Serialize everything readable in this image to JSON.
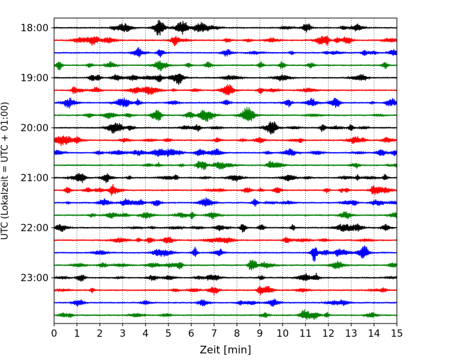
{
  "chart_data": {
    "type": "line",
    "title": "",
    "xlabel": "Zeit  [min]",
    "ylabel": "UTC (Lokalzeit = UTC + 01:00)",
    "xlim": [
      0,
      15
    ],
    "x_ticks": [
      "0",
      "1",
      "2",
      "3",
      "4",
      "5",
      "6",
      "7",
      "8",
      "9",
      "10",
      "11",
      "12",
      "13",
      "14",
      "15"
    ],
    "y_ticks": [
      "18:00",
      "19:00",
      "20:00",
      "21:00",
      "22:00",
      "23:00"
    ],
    "grid": "vertical dotted at each minute",
    "legend": "none",
    "trace_minutes": 15,
    "colors_cycle": [
      "#000000",
      "#ff0000",
      "#0000ff",
      "#007f00"
    ],
    "series": [
      {
        "start": "18:00",
        "amplitude": 0.5
      },
      {
        "start": "18:15",
        "amplitude": 0.5
      },
      {
        "start": "18:30",
        "amplitude": 0.5
      },
      {
        "start": "18:45",
        "amplitude": 0.5
      },
      {
        "start": "19:00",
        "amplitude": 0.5
      },
      {
        "start": "19:15",
        "amplitude": 0.5
      },
      {
        "start": "19:30",
        "amplitude": 0.5
      },
      {
        "start": "19:45",
        "amplitude": 0.5
      },
      {
        "start": "20:00",
        "amplitude": 0.5
      },
      {
        "start": "20:15",
        "amplitude": 0.5
      },
      {
        "start": "20:30",
        "amplitude": 0.5
      },
      {
        "start": "20:45",
        "amplitude": 0.5
      },
      {
        "start": "21:00",
        "amplitude": 0.5
      },
      {
        "start": "21:15",
        "amplitude": 0.5
      },
      {
        "start": "21:30",
        "amplitude": 0.5
      },
      {
        "start": "21:45",
        "amplitude": 0.5
      },
      {
        "start": "22:00",
        "amplitude": 0.5
      },
      {
        "start": "22:15",
        "amplitude": 0.5
      },
      {
        "start": "22:30",
        "amplitude": 0.5
      },
      {
        "start": "22:45",
        "amplitude": 0.5
      },
      {
        "start": "23:00",
        "amplitude": 0.5
      },
      {
        "start": "23:15",
        "amplitude": 0.5
      },
      {
        "start": "23:30",
        "amplitude": 0.5
      },
      {
        "start": "23:45",
        "amplitude": 0.5
      }
    ]
  }
}
